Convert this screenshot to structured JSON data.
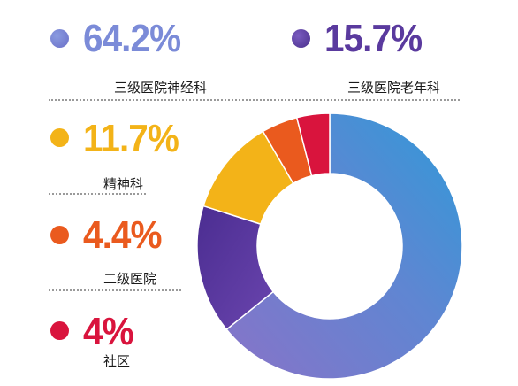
{
  "chart_data": {
    "type": "pie",
    "donut": true,
    "slices": [
      {
        "label": "三级医院神经科",
        "value": 64.2,
        "value_label": "64.2%",
        "color": "#6a6fc8"
      },
      {
        "label": "三级医院老年科",
        "value": 15.7,
        "value_label": "15.7%",
        "color": "#5a3a9e"
      },
      {
        "label": "精神科",
        "value": 11.7,
        "value_label": "11.7%",
        "color": "#f3b318"
      },
      {
        "label": "二级医院",
        "value": 4.4,
        "value_label": "4.4%",
        "color": "#ea5a1e"
      },
      {
        "label": "社区",
        "value": 4,
        "value_label": "4%",
        "color": "#d9143d"
      }
    ],
    "legend_placement": "left and top"
  }
}
